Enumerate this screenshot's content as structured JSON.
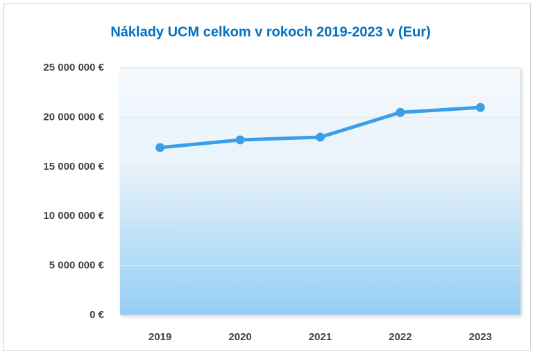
{
  "chart_data": {
    "type": "line",
    "title": "Náklady UCM celkom v rokoch 2019-2023 v (Eur)",
    "categories": [
      "2019",
      "2020",
      "2021",
      "2022",
      "2023"
    ],
    "series": [
      {
        "name": "Náklady",
        "color": "#3a9fe6",
        "values": [
          16950000,
          17720000,
          18000000,
          20500000,
          21000000
        ]
      }
    ],
    "ylim": [
      0,
      25000000
    ],
    "yticks": [
      {
        "value": 0,
        "label": "0 €"
      },
      {
        "value": 5000000,
        "label": "5 000 000 €"
      },
      {
        "value": 10000000,
        "label": "10 000 000 €"
      },
      {
        "value": 15000000,
        "label": "15 000 000 €"
      },
      {
        "value": 20000000,
        "label": "20 000 000 €"
      },
      {
        "value": 25000000,
        "label": "25 000 000 €"
      }
    ],
    "grid": true
  }
}
